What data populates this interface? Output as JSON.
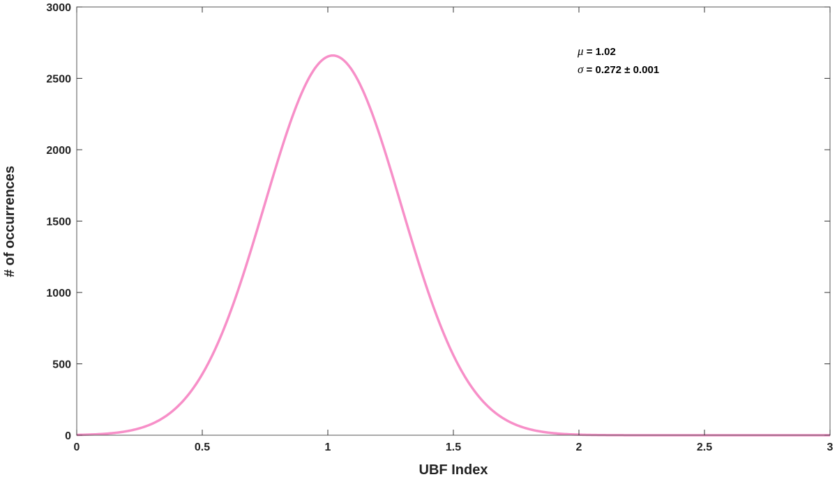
{
  "chart_data": {
    "type": "bar",
    "subtype": "histogram",
    "xlabel": "UBF Index",
    "ylabel": "# of occurrences",
    "xlim": [
      0,
      3
    ],
    "ylim": [
      0,
      3000
    ],
    "xticks": [
      "0",
      "0.5",
      "1",
      "1.5",
      "2",
      "2.5",
      "3"
    ],
    "yticks": [
      "0",
      "500",
      "1000",
      "1500",
      "2000",
      "2500",
      "3000"
    ],
    "bin_start": 0.0,
    "bin_width": 0.02,
    "bin_counts": [
      0,
      0,
      0,
      0,
      0,
      0,
      0,
      0,
      0,
      0,
      0,
      0,
      0,
      0,
      0,
      0,
      0,
      0,
      0,
      0,
      0,
      0,
      0,
      0,
      0,
      0,
      0,
      0,
      0,
      0,
      0,
      0,
      0,
      0,
      0,
      0,
      0,
      0,
      0,
      0,
      0,
      0,
      0,
      0,
      0,
      0,
      0,
      0,
      0,
      0,
      0,
      0,
      0,
      0,
      0,
      0,
      0,
      0,
      0,
      0,
      0,
      0,
      0,
      0,
      0,
      0,
      0,
      0,
      0,
      0,
      0,
      0,
      0,
      0,
      0,
      0,
      0,
      0,
      0,
      0,
      0,
      0,
      0,
      0,
      0,
      0,
      0,
      0,
      0,
      0,
      0,
      0,
      0,
      0,
      0,
      0,
      0,
      0,
      0,
      0,
      0,
      0,
      0,
      0,
      0,
      0,
      0,
      0,
      0,
      0,
      0,
      0,
      0,
      0,
      0,
      0,
      0,
      0,
      0,
      0,
      0,
      0,
      0,
      0,
      0,
      0,
      0,
      0,
      0,
      0,
      0,
      0,
      0,
      0,
      0,
      0,
      0,
      0,
      0,
      0,
      0,
      0,
      0,
      0,
      0,
      0,
      0,
      0,
      0,
      0
    ],
    "bar_color": "#4222AA",
    "fit": {
      "type": "gaussian",
      "mu": 1.02,
      "sigma": 0.272,
      "amplitude": 2660,
      "color": "#F78FC8"
    },
    "annotations": [
      {
        "symbol": "μ",
        "text": " = 1.02"
      },
      {
        "symbol": "σ",
        "text": " = 0.272 ± 0.001"
      }
    ]
  }
}
